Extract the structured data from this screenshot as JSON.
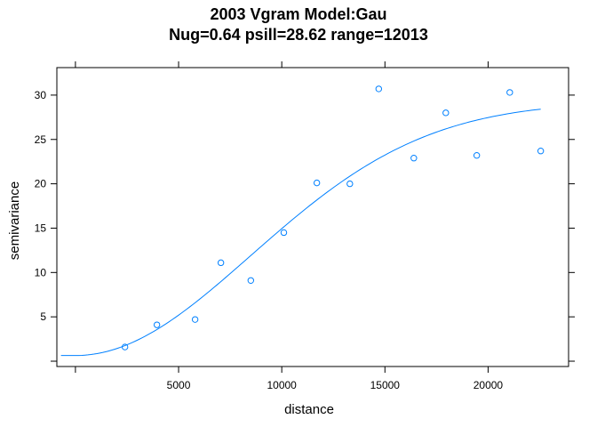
{
  "chart_data": {
    "type": "scatter",
    "title": "2003 Vgram Model:Gau",
    "subtitle": "Nug=0.64 psill=28.62 range=12013",
    "xlabel": "distance",
    "ylabel": "semivariance",
    "xlim": [
      -900,
      23900
    ],
    "ylim": [
      -0.6,
      33.1
    ],
    "xticks": [
      5000,
      10000,
      15000,
      20000
    ],
    "yticks": [
      5,
      10,
      15,
      20,
      25,
      30
    ],
    "grid": false,
    "points_color": "#0080ff",
    "line_color": "#0080ff",
    "model": {
      "type": "Gau",
      "nugget": 0.64,
      "psill": 28.62,
      "range": 12013
    },
    "points": [
      {
        "x": 2400,
        "y": 1.6
      },
      {
        "x": 3950,
        "y": 4.1
      },
      {
        "x": 5800,
        "y": 4.7
      },
      {
        "x": 7050,
        "y": 11.1
      },
      {
        "x": 8500,
        "y": 9.1
      },
      {
        "x": 10100,
        "y": 14.5
      },
      {
        "x": 11700,
        "y": 20.1
      },
      {
        "x": 13300,
        "y": 20.0
      },
      {
        "x": 14700,
        "y": 30.7
      },
      {
        "x": 16400,
        "y": 22.9
      },
      {
        "x": 17950,
        "y": 28.0
      },
      {
        "x": 19450,
        "y": 23.2
      },
      {
        "x": 21050,
        "y": 30.3
      },
      {
        "x": 22550,
        "y": 23.7
      }
    ]
  }
}
